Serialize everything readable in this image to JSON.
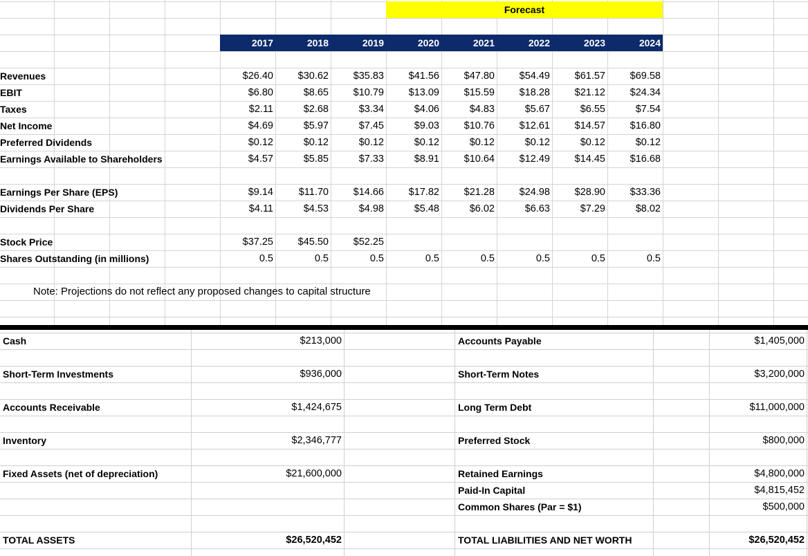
{
  "header": {
    "forecast_label": "Forecast",
    "years": [
      "2017",
      "2018",
      "2019",
      "2020",
      "2021",
      "2022",
      "2023",
      "2024"
    ]
  },
  "income": {
    "rows": [
      {
        "label": "Revenues",
        "values": [
          "$26.40",
          "$30.62",
          "$35.83",
          "$41.56",
          "$47.80",
          "$54.49",
          "$61.57",
          "$69.58"
        ]
      },
      {
        "label": "EBIT",
        "values": [
          "$6.80",
          "$8.65",
          "$10.79",
          "$13.09",
          "$15.59",
          "$18.28",
          "$21.12",
          "$24.34"
        ]
      },
      {
        "label": "Taxes",
        "values": [
          "$2.11",
          "$2.68",
          "$3.34",
          "$4.06",
          "$4.83",
          "$5.67",
          "$6.55",
          "$7.54"
        ]
      },
      {
        "label": "Net Income",
        "values": [
          "$4.69",
          "$5.97",
          "$7.45",
          "$9.03",
          "$10.76",
          "$12.61",
          "$14.57",
          "$16.80"
        ]
      },
      {
        "label": "Preferred Dividends",
        "values": [
          "$0.12",
          "$0.12",
          "$0.12",
          "$0.12",
          "$0.12",
          "$0.12",
          "$0.12",
          "$0.12"
        ]
      },
      {
        "label": "Earnings Available to Shareholders",
        "values": [
          "$4.57",
          "$5.85",
          "$7.33",
          "$8.91",
          "$10.64",
          "$12.49",
          "$14.45",
          "$16.68"
        ]
      }
    ]
  },
  "per_share": {
    "rows": [
      {
        "label": "Earnings Per Share (EPS)",
        "values": [
          "$9.14",
          "$11.70",
          "$14.66",
          "$17.82",
          "$21.28",
          "$24.98",
          "$28.90",
          "$33.36"
        ]
      },
      {
        "label": "Dividends Per Share",
        "values": [
          "$4.11",
          "$4.53",
          "$4.98",
          "$5.48",
          "$6.02",
          "$6.63",
          "$7.29",
          "$8.02"
        ]
      }
    ]
  },
  "stock": {
    "rows": [
      {
        "label": "Stock Price",
        "values": [
          "$37.25",
          "$45.50",
          "$52.25",
          "",
          "",
          "",
          "",
          ""
        ]
      },
      {
        "label": "Shares Outstanding (in millions)",
        "values": [
          "0.5",
          "0.5",
          "0.5",
          "0.5",
          "0.5",
          "0.5",
          "0.5",
          "0.5"
        ]
      }
    ]
  },
  "note": "Note: Projections do not reflect any proposed changes to capital structure",
  "balance_sheet": {
    "assets": [
      {
        "label": "Cash",
        "value": "$213,000"
      },
      {
        "label": "Short-Term Investments",
        "value": "$936,000"
      },
      {
        "label": "Accounts Receivable",
        "value": "$1,424,675"
      },
      {
        "label": "Inventory",
        "value": "$2,346,777"
      },
      {
        "label": "Fixed Assets (net of depreciation)",
        "value": "$21,600,000"
      }
    ],
    "total_assets_label": "TOTAL ASSETS",
    "total_assets_value": "$26,520,452",
    "liabilities": [
      {
        "label": "Accounts Payable",
        "value": "$1,405,000"
      },
      {
        "label": "Short-Term Notes",
        "value": "$3,200,000"
      },
      {
        "label": "Long Term Debt",
        "value": "$11,000,000"
      },
      {
        "label": "Preferred Stock",
        "value": "$800,000"
      },
      {
        "label": "Retained Earnings",
        "value": "$4,800,000"
      },
      {
        "label": "Paid-In Capital",
        "value": "$4,815,452"
      },
      {
        "label": "Common Shares (Par = $1)",
        "value": "$500,000"
      }
    ],
    "total_liab_label": "TOTAL LIABILITIES AND NET WORTH",
    "total_liab_value": "$26,520,452"
  }
}
